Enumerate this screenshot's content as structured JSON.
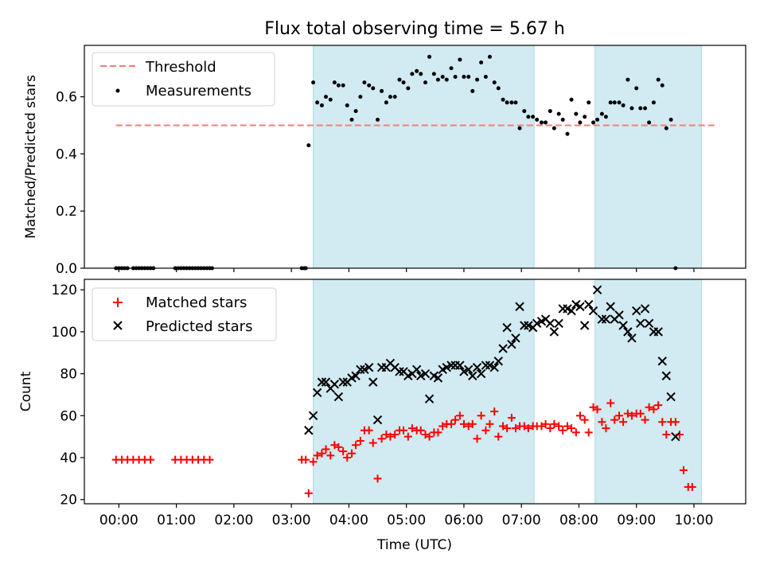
{
  "chart_data": {
    "type": "scatter",
    "title": "Flux total observing time = 5.67 h",
    "xlabel": "Time (UTC)",
    "xlim_hours": [
      -0.6,
      10.9
    ],
    "x_ticks": [
      {
        "hour": 0,
        "label": "00:00"
      },
      {
        "hour": 1,
        "label": "01:00"
      },
      {
        "hour": 2,
        "label": "02:00"
      },
      {
        "hour": 3,
        "label": "03:00"
      },
      {
        "hour": 4,
        "label": "04:00"
      },
      {
        "hour": 5,
        "label": "05:00"
      },
      {
        "hour": 6,
        "label": "06:00"
      },
      {
        "hour": 7,
        "label": "07:00"
      },
      {
        "hour": 8,
        "label": "08:00"
      },
      {
        "hour": 9,
        "label": "09:00"
      },
      {
        "hour": 10,
        "label": "10:00"
      }
    ],
    "shaded_intervals_hours": [
      [
        3.38,
        7.22
      ],
      [
        8.28,
        10.13
      ]
    ],
    "shade_color": "#add8e6",
    "top": {
      "ylabel": "Matched/Predicted stars",
      "ylim": [
        0,
        0.78
      ],
      "y_ticks": [
        {
          "v": 0.0,
          "label": "0.0"
        },
        {
          "v": 0.2,
          "label": "0.2"
        },
        {
          "v": 0.4,
          "label": "0.4"
        },
        {
          "v": 0.6,
          "label": "0.6"
        }
      ],
      "threshold": {
        "name": "Threshold",
        "value": 0.5,
        "x_range_hours": [
          -0.05,
          10.4
        ],
        "color": "#ff7a7a"
      },
      "measurements_name": "Measurements",
      "measurements": [
        [
          -0.05,
          0
        ],
        [
          0.0,
          0
        ],
        [
          0.05,
          0
        ],
        [
          0.1,
          0
        ],
        [
          0.15,
          0
        ],
        [
          0.25,
          0
        ],
        [
          0.3,
          0
        ],
        [
          0.35,
          0
        ],
        [
          0.4,
          0
        ],
        [
          0.45,
          0
        ],
        [
          0.5,
          0
        ],
        [
          0.55,
          0
        ],
        [
          0.6,
          0
        ],
        [
          0.98,
          0
        ],
        [
          1.03,
          0
        ],
        [
          1.08,
          0
        ],
        [
          1.13,
          0
        ],
        [
          1.18,
          0
        ],
        [
          1.23,
          0
        ],
        [
          1.28,
          0
        ],
        [
          1.33,
          0
        ],
        [
          1.38,
          0
        ],
        [
          1.43,
          0
        ],
        [
          1.48,
          0
        ],
        [
          1.53,
          0
        ],
        [
          1.58,
          0
        ],
        [
          1.62,
          0
        ],
        [
          3.18,
          0
        ],
        [
          3.22,
          0
        ],
        [
          3.25,
          0
        ],
        [
          3.3,
          0.43
        ],
        [
          3.38,
          0.65
        ],
        [
          3.45,
          0.58
        ],
        [
          3.53,
          0.57
        ],
        [
          3.6,
          0.6
        ],
        [
          3.68,
          0.59
        ],
        [
          3.75,
          0.65
        ],
        [
          3.82,
          0.64
        ],
        [
          3.9,
          0.64
        ],
        [
          3.97,
          0.57
        ],
        [
          4.05,
          0.52
        ],
        [
          4.12,
          0.55
        ],
        [
          4.2,
          0.6
        ],
        [
          4.27,
          0.65
        ],
        [
          4.35,
          0.64
        ],
        [
          4.42,
          0.63
        ],
        [
          4.5,
          0.52
        ],
        [
          4.57,
          0.62
        ],
        [
          4.65,
          0.58
        ],
        [
          4.72,
          0.6
        ],
        [
          4.8,
          0.6
        ],
        [
          4.88,
          0.66
        ],
        [
          4.95,
          0.65
        ],
        [
          5.03,
          0.63
        ],
        [
          5.1,
          0.68
        ],
        [
          5.18,
          0.69
        ],
        [
          5.25,
          0.68
        ],
        [
          5.33,
          0.65
        ],
        [
          5.4,
          0.74
        ],
        [
          5.48,
          0.68
        ],
        [
          5.55,
          0.66
        ],
        [
          5.63,
          0.67
        ],
        [
          5.7,
          0.66
        ],
        [
          5.78,
          0.7
        ],
        [
          5.85,
          0.67
        ],
        [
          5.93,
          0.73
        ],
        [
          6.0,
          0.67
        ],
        [
          6.08,
          0.67
        ],
        [
          6.15,
          0.62
        ],
        [
          6.23,
          0.66
        ],
        [
          6.3,
          0.72
        ],
        [
          6.38,
          0.67
        ],
        [
          6.45,
          0.74
        ],
        [
          6.53,
          0.65
        ],
        [
          6.6,
          0.63
        ],
        [
          6.68,
          0.59
        ],
        [
          6.75,
          0.58
        ],
        [
          6.83,
          0.58
        ],
        [
          6.9,
          0.58
        ],
        [
          6.97,
          0.49
        ],
        [
          7.05,
          0.55
        ],
        [
          7.12,
          0.53
        ],
        [
          7.2,
          0.53
        ],
        [
          7.27,
          0.52
        ],
        [
          7.35,
          0.51
        ],
        [
          7.42,
          0.51
        ],
        [
          7.5,
          0.55
        ],
        [
          7.57,
          0.49
        ],
        [
          7.65,
          0.54
        ],
        [
          7.72,
          0.52
        ],
        [
          7.8,
          0.47
        ],
        [
          7.87,
          0.59
        ],
        [
          7.95,
          0.54
        ],
        [
          8.02,
          0.51
        ],
        [
          8.1,
          0.53
        ],
        [
          8.17,
          0.58
        ],
        [
          8.25,
          0.51
        ],
        [
          8.32,
          0.52
        ],
        [
          8.4,
          0.54
        ],
        [
          8.47,
          0.53
        ],
        [
          8.55,
          0.58
        ],
        [
          8.62,
          0.58
        ],
        [
          8.7,
          0.58
        ],
        [
          8.77,
          0.57
        ],
        [
          8.85,
          0.66
        ],
        [
          8.92,
          0.56
        ],
        [
          9.0,
          0.63
        ],
        [
          9.07,
          0.56
        ],
        [
          9.15,
          0.56
        ],
        [
          9.22,
          0.51
        ],
        [
          9.3,
          0.58
        ],
        [
          9.38,
          0.66
        ],
        [
          9.45,
          0.64
        ],
        [
          9.52,
          0.49
        ],
        [
          9.6,
          0.52
        ],
        [
          9.68,
          0.0
        ]
      ]
    },
    "bottom": {
      "ylabel": "Count",
      "ylim": [
        18,
        125
      ],
      "y_ticks": [
        {
          "v": 20,
          "label": "20"
        },
        {
          "v": 40,
          "label": "40"
        },
        {
          "v": 60,
          "label": "60"
        },
        {
          "v": 80,
          "label": "80"
        },
        {
          "v": 100,
          "label": "100"
        },
        {
          "v": 120,
          "label": "120"
        }
      ],
      "matched_name": "Matched stars",
      "matched_color": "#ff0000",
      "matched": [
        [
          -0.05,
          39
        ],
        [
          0.05,
          39
        ],
        [
          0.15,
          39
        ],
        [
          0.25,
          39
        ],
        [
          0.35,
          39
        ],
        [
          0.45,
          39
        ],
        [
          0.55,
          39
        ],
        [
          0.98,
          39
        ],
        [
          1.08,
          39
        ],
        [
          1.18,
          39
        ],
        [
          1.28,
          39
        ],
        [
          1.38,
          39
        ],
        [
          1.48,
          39
        ],
        [
          1.58,
          39
        ],
        [
          3.18,
          39
        ],
        [
          3.25,
          39
        ],
        [
          3.3,
          23
        ],
        [
          3.38,
          38
        ],
        [
          3.45,
          41
        ],
        [
          3.53,
          42
        ],
        [
          3.6,
          44
        ],
        [
          3.68,
          41
        ],
        [
          3.75,
          46
        ],
        [
          3.82,
          45
        ],
        [
          3.9,
          43
        ],
        [
          3.97,
          40
        ],
        [
          4.05,
          42
        ],
        [
          4.12,
          46
        ],
        [
          4.2,
          48
        ],
        [
          4.27,
          53
        ],
        [
          4.35,
          53
        ],
        [
          4.42,
          47
        ],
        [
          4.5,
          30
        ],
        [
          4.57,
          49
        ],
        [
          4.65,
          51
        ],
        [
          4.72,
          50
        ],
        [
          4.8,
          51
        ],
        [
          4.88,
          53
        ],
        [
          4.95,
          53
        ],
        [
          5.03,
          50
        ],
        [
          5.1,
          54
        ],
        [
          5.18,
          53
        ],
        [
          5.25,
          53
        ],
        [
          5.33,
          51
        ],
        [
          5.4,
          50
        ],
        [
          5.48,
          52
        ],
        [
          5.55,
          52
        ],
        [
          5.63,
          55
        ],
        [
          5.7,
          56
        ],
        [
          5.78,
          56
        ],
        [
          5.85,
          58
        ],
        [
          5.93,
          60
        ],
        [
          6.0,
          56
        ],
        [
          6.08,
          55
        ],
        [
          6.15,
          56
        ],
        [
          6.23,
          49
        ],
        [
          6.3,
          60
        ],
        [
          6.38,
          53
        ],
        [
          6.45,
          56
        ],
        [
          6.53,
          62
        ],
        [
          6.6,
          50
        ],
        [
          6.68,
          55
        ],
        [
          6.75,
          54
        ],
        [
          6.83,
          59
        ],
        [
          6.9,
          54
        ],
        [
          6.97,
          55
        ],
        [
          7.05,
          55
        ],
        [
          7.12,
          54
        ],
        [
          7.2,
          55
        ],
        [
          7.27,
          55
        ],
        [
          7.35,
          55
        ],
        [
          7.42,
          56
        ],
        [
          7.5,
          54
        ],
        [
          7.57,
          56
        ],
        [
          7.65,
          55
        ],
        [
          7.72,
          53
        ],
        [
          7.8,
          55
        ],
        [
          7.87,
          54
        ],
        [
          7.95,
          52
        ],
        [
          8.02,
          60
        ],
        [
          8.1,
          58
        ],
        [
          8.17,
          52
        ],
        [
          8.25,
          64
        ],
        [
          8.32,
          63
        ],
        [
          8.4,
          57
        ],
        [
          8.47,
          54
        ],
        [
          8.55,
          66
        ],
        [
          8.62,
          58
        ],
        [
          8.7,
          60
        ],
        [
          8.77,
          57
        ],
        [
          8.85,
          61
        ],
        [
          8.92,
          60
        ],
        [
          9.0,
          61
        ],
        [
          9.07,
          61
        ],
        [
          9.15,
          58
        ],
        [
          9.22,
          64
        ],
        [
          9.3,
          63
        ],
        [
          9.38,
          65
        ],
        [
          9.45,
          57
        ],
        [
          9.52,
          51
        ],
        [
          9.6,
          57
        ],
        [
          9.68,
          57
        ],
        [
          9.75,
          51
        ],
        [
          9.82,
          34
        ],
        [
          9.9,
          26
        ],
        [
          9.97,
          26
        ]
      ],
      "predicted_name": "Predicted stars",
      "predicted": [
        [
          3.3,
          53
        ],
        [
          3.38,
          60
        ],
        [
          3.45,
          71
        ],
        [
          3.53,
          76
        ],
        [
          3.6,
          76
        ],
        [
          3.68,
          73
        ],
        [
          3.75,
          75
        ],
        [
          3.82,
          69
        ],
        [
          3.9,
          76
        ],
        [
          3.97,
          76
        ],
        [
          4.05,
          78
        ],
        [
          4.12,
          79
        ],
        [
          4.2,
          82
        ],
        [
          4.27,
          82
        ],
        [
          4.35,
          83
        ],
        [
          4.42,
          76
        ],
        [
          4.5,
          58
        ],
        [
          4.57,
          83
        ],
        [
          4.65,
          83
        ],
        [
          4.72,
          85
        ],
        [
          4.8,
          83
        ],
        [
          4.88,
          81
        ],
        [
          4.95,
          81
        ],
        [
          5.03,
          79
        ],
        [
          5.1,
          80
        ],
        [
          5.18,
          82
        ],
        [
          5.25,
          79
        ],
        [
          5.33,
          80
        ],
        [
          5.4,
          68
        ],
        [
          5.48,
          79
        ],
        [
          5.55,
          78
        ],
        [
          5.63,
          82
        ],
        [
          5.7,
          83
        ],
        [
          5.78,
          84
        ],
        [
          5.85,
          84
        ],
        [
          5.93,
          84
        ],
        [
          6.0,
          81
        ],
        [
          6.08,
          82
        ],
        [
          6.15,
          79
        ],
        [
          6.23,
          83
        ],
        [
          6.3,
          80
        ],
        [
          6.38,
          84
        ],
        [
          6.45,
          84
        ],
        [
          6.53,
          83
        ],
        [
          6.6,
          86
        ],
        [
          6.68,
          92
        ],
        [
          6.75,
          102
        ],
        [
          6.83,
          94
        ],
        [
          6.9,
          97
        ],
        [
          6.97,
          112
        ],
        [
          7.05,
          103
        ],
        [
          7.12,
          103
        ],
        [
          7.2,
          102
        ],
        [
          7.27,
          104
        ],
        [
          7.35,
          105
        ],
        [
          7.42,
          106
        ],
        [
          7.5,
          104
        ],
        [
          7.57,
          100
        ],
        [
          7.65,
          104
        ],
        [
          7.72,
          111
        ],
        [
          7.8,
          111
        ],
        [
          7.87,
          110
        ],
        [
          7.95,
          113
        ],
        [
          8.02,
          112
        ],
        [
          8.1,
          103
        ],
        [
          8.17,
          113
        ],
        [
          8.25,
          110
        ],
        [
          8.32,
          120
        ],
        [
          8.4,
          106
        ],
        [
          8.47,
          106
        ],
        [
          8.55,
          112
        ],
        [
          8.62,
          106
        ],
        [
          8.7,
          108
        ],
        [
          8.77,
          103
        ],
        [
          8.85,
          100
        ],
        [
          8.92,
          97
        ],
        [
          9.0,
          110
        ],
        [
          9.07,
          104
        ],
        [
          9.15,
          111
        ],
        [
          9.22,
          104
        ],
        [
          9.3,
          100
        ],
        [
          9.38,
          100
        ],
        [
          9.45,
          86
        ],
        [
          9.52,
          79
        ],
        [
          9.6,
          69
        ],
        [
          9.68,
          50
        ]
      ]
    }
  }
}
